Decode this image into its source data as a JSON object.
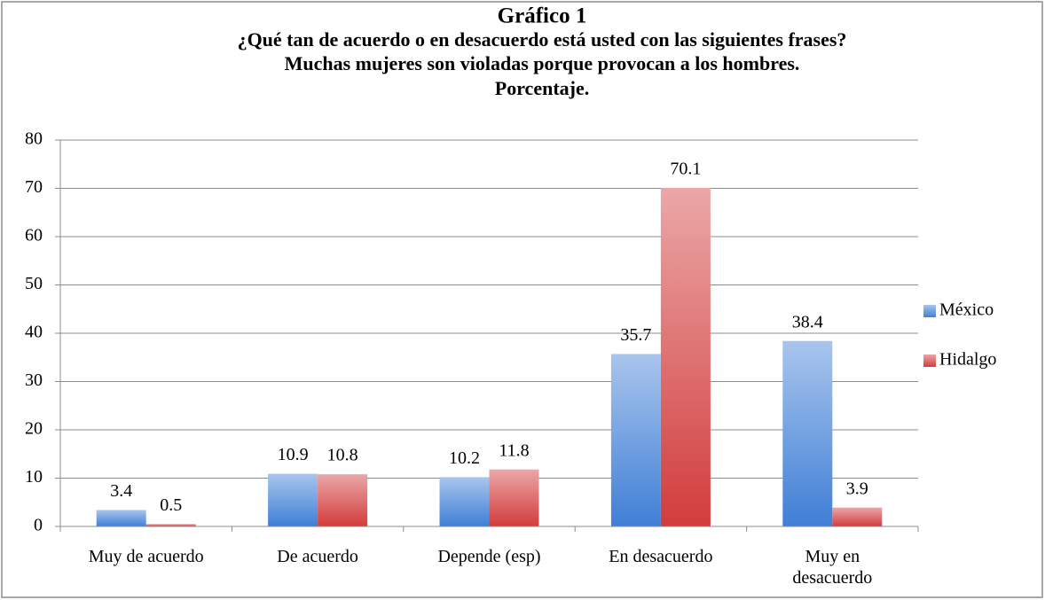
{
  "chart_data": {
    "type": "bar",
    "title": [
      "Gráfico 1",
      "¿Qué tan de acuerdo o en desacuerdo está usted con las siguientes frases?",
      "Muchas mujeres son violadas porque provocan a los hombres.",
      "Porcentaje."
    ],
    "categories": [
      "Muy de acuerdo",
      "De acuerdo",
      "Depende (esp)",
      "En desacuerdo",
      "Muy en desacuerdo"
    ],
    "series": [
      {
        "name": "México",
        "color": "#3f7fd6",
        "values": [
          3.4,
          10.9,
          10.2,
          35.7,
          38.4
        ]
      },
      {
        "name": "Hidalgo",
        "color": "#d23c3c",
        "values": [
          0.5,
          10.8,
          11.8,
          70.1,
          3.9
        ]
      }
    ],
    "ylim": [
      0,
      80
    ],
    "yticks": [
      0,
      10,
      20,
      30,
      40,
      50,
      60,
      70,
      80
    ],
    "grid": true,
    "legend": "right"
  }
}
